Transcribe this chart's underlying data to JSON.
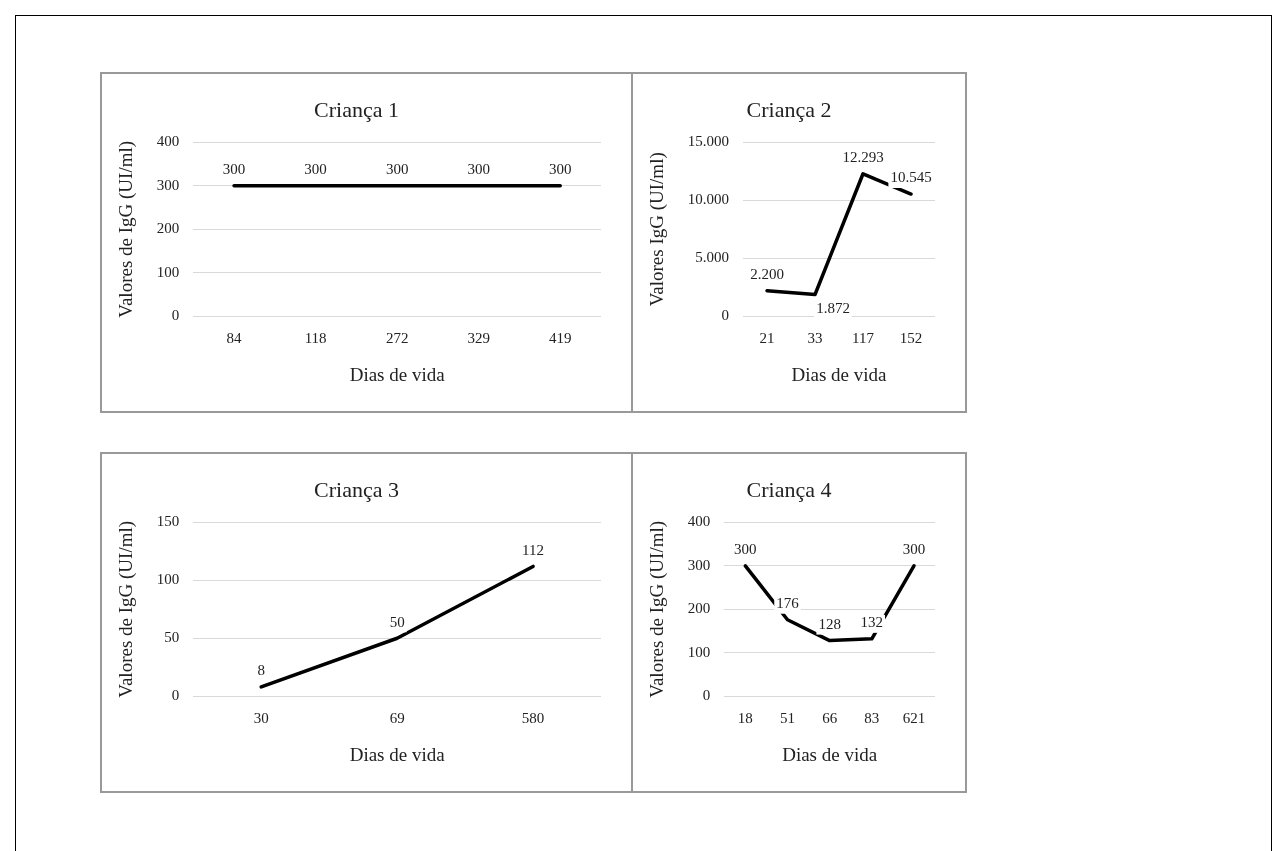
{
  "chart_data": [
    {
      "type": "line",
      "title": "Criança 1",
      "xlabel": "Dias de vida",
      "ylabel": "Valores de IgG (UI/ml)",
      "categories": [
        "84",
        "118",
        "272",
        "329",
        "419"
      ],
      "series": [
        {
          "color": "#000000",
          "values": [
            300,
            300,
            300,
            300,
            300
          ],
          "value_labels": [
            "300",
            "300",
            "300",
            "300",
            "300"
          ]
        }
      ],
      "ylim": [
        0,
        400
      ],
      "yticks": [
        0,
        100,
        200,
        300,
        400
      ],
      "grid": "y",
      "legend": false,
      "marker": "none"
    },
    {
      "type": "line",
      "title": "Criança 2",
      "xlabel": "Dias de vida",
      "ylabel": "Valores IgG (UI/ml)",
      "categories": [
        "21",
        "33",
        "117",
        "152"
      ],
      "series": [
        {
          "color": "#000000",
          "values": [
            2200,
            1872,
            12293,
            10545
          ],
          "value_labels": [
            "2.200",
            "1.872",
            "12.293",
            "10.545"
          ]
        }
      ],
      "ylim": [
        0,
        15000
      ],
      "yticks": [
        0,
        {
          "value": 5000,
          "label": "5.000"
        },
        {
          "value": 10000,
          "label": "10.000"
        },
        {
          "value": 15000,
          "label": "15.000"
        }
      ],
      "grid": "y",
      "legend": false,
      "marker": "none"
    },
    {
      "type": "line",
      "title": "Criança 3",
      "xlabel": "Dias de vida",
      "ylabel": "Valores de IgG (UI/ml)",
      "categories": [
        "30",
        "69",
        "580"
      ],
      "series": [
        {
          "color": "#000000",
          "values": [
            8,
            50,
            112
          ],
          "value_labels": [
            "8",
            "50",
            "112"
          ]
        }
      ],
      "ylim": [
        0,
        150
      ],
      "yticks": [
        0,
        50,
        100,
        150
      ],
      "grid": "y",
      "legend": false,
      "marker": "none"
    },
    {
      "type": "line",
      "title": "Criança 4",
      "xlabel": "Dias de vida",
      "ylabel": "Valores de IgG (UI/ml)",
      "categories": [
        "18",
        "51",
        "66",
        "83",
        "621"
      ],
      "series": [
        {
          "color": "#000000",
          "values": [
            300,
            176,
            128,
            132,
            300
          ],
          "value_labels": [
            "300",
            "176",
            "128",
            "132",
            "300"
          ]
        }
      ],
      "ylim": [
        0,
        400
      ],
      "yticks": [
        0,
        100,
        200,
        300,
        400
      ],
      "grid": "y",
      "legend": false,
      "marker": "none"
    }
  ]
}
